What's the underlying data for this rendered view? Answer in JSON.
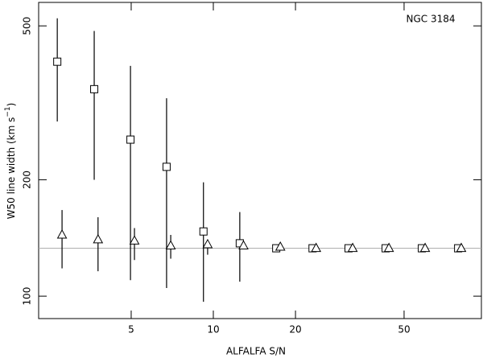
{
  "chart_data": {
    "type": "scatter",
    "annotation": "NGC 3184",
    "xlabel": "ALFALFA S/N",
    "ylabel": {
      "text": "W50 line width (km s",
      "superscript": "−1",
      "suffix": ")"
    },
    "xscale": "log",
    "yscale": "log",
    "xlim": [
      2.29,
      96
    ],
    "ylim": [
      87.5,
      575
    ],
    "xticks": [
      5,
      10,
      20,
      50
    ],
    "yticks": [
      100,
      200,
      500
    ],
    "hline": 133,
    "hline_color": "#aaaaaa",
    "series": [
      {
        "marker": "square",
        "color": "#000000",
        "x": [
          2.68,
          3.66,
          4.97,
          6.74,
          9.2,
          12.5,
          17.0,
          23.1,
          31.3,
          42.8,
          58.1,
          78.9
        ],
        "values": [
          404,
          343,
          254,
          216,
          147,
          137,
          133,
          133,
          133,
          133,
          133,
          133
        ],
        "yerr_lower": [
          283,
          200,
          110,
          105,
          96.7,
          109,
          null,
          null,
          null,
          null,
          null,
          null
        ],
        "yerr_upper": [
          523,
          485,
          394,
          325,
          197,
          165,
          null,
          null,
          null,
          null,
          null,
          null
        ]
      },
      {
        "marker": "triangle",
        "color": "#000000",
        "x": [
          2.79,
          3.78,
          5.14,
          6.98,
          9.53,
          12.9,
          17.6,
          23.8,
          32.4,
          44.0,
          59.7,
          81.0
        ],
        "values": [
          144,
          140,
          139,
          135,
          136,
          135,
          134,
          133,
          133,
          133,
          133,
          133
        ],
        "yerr_lower": [
          118,
          116,
          124,
          125,
          128,
          null,
          null,
          null,
          null,
          null,
          null,
          null
        ],
        "yerr_upper": [
          167,
          160,
          150,
          144,
          139,
          null,
          null,
          null,
          null,
          null,
          null,
          null
        ]
      }
    ]
  }
}
